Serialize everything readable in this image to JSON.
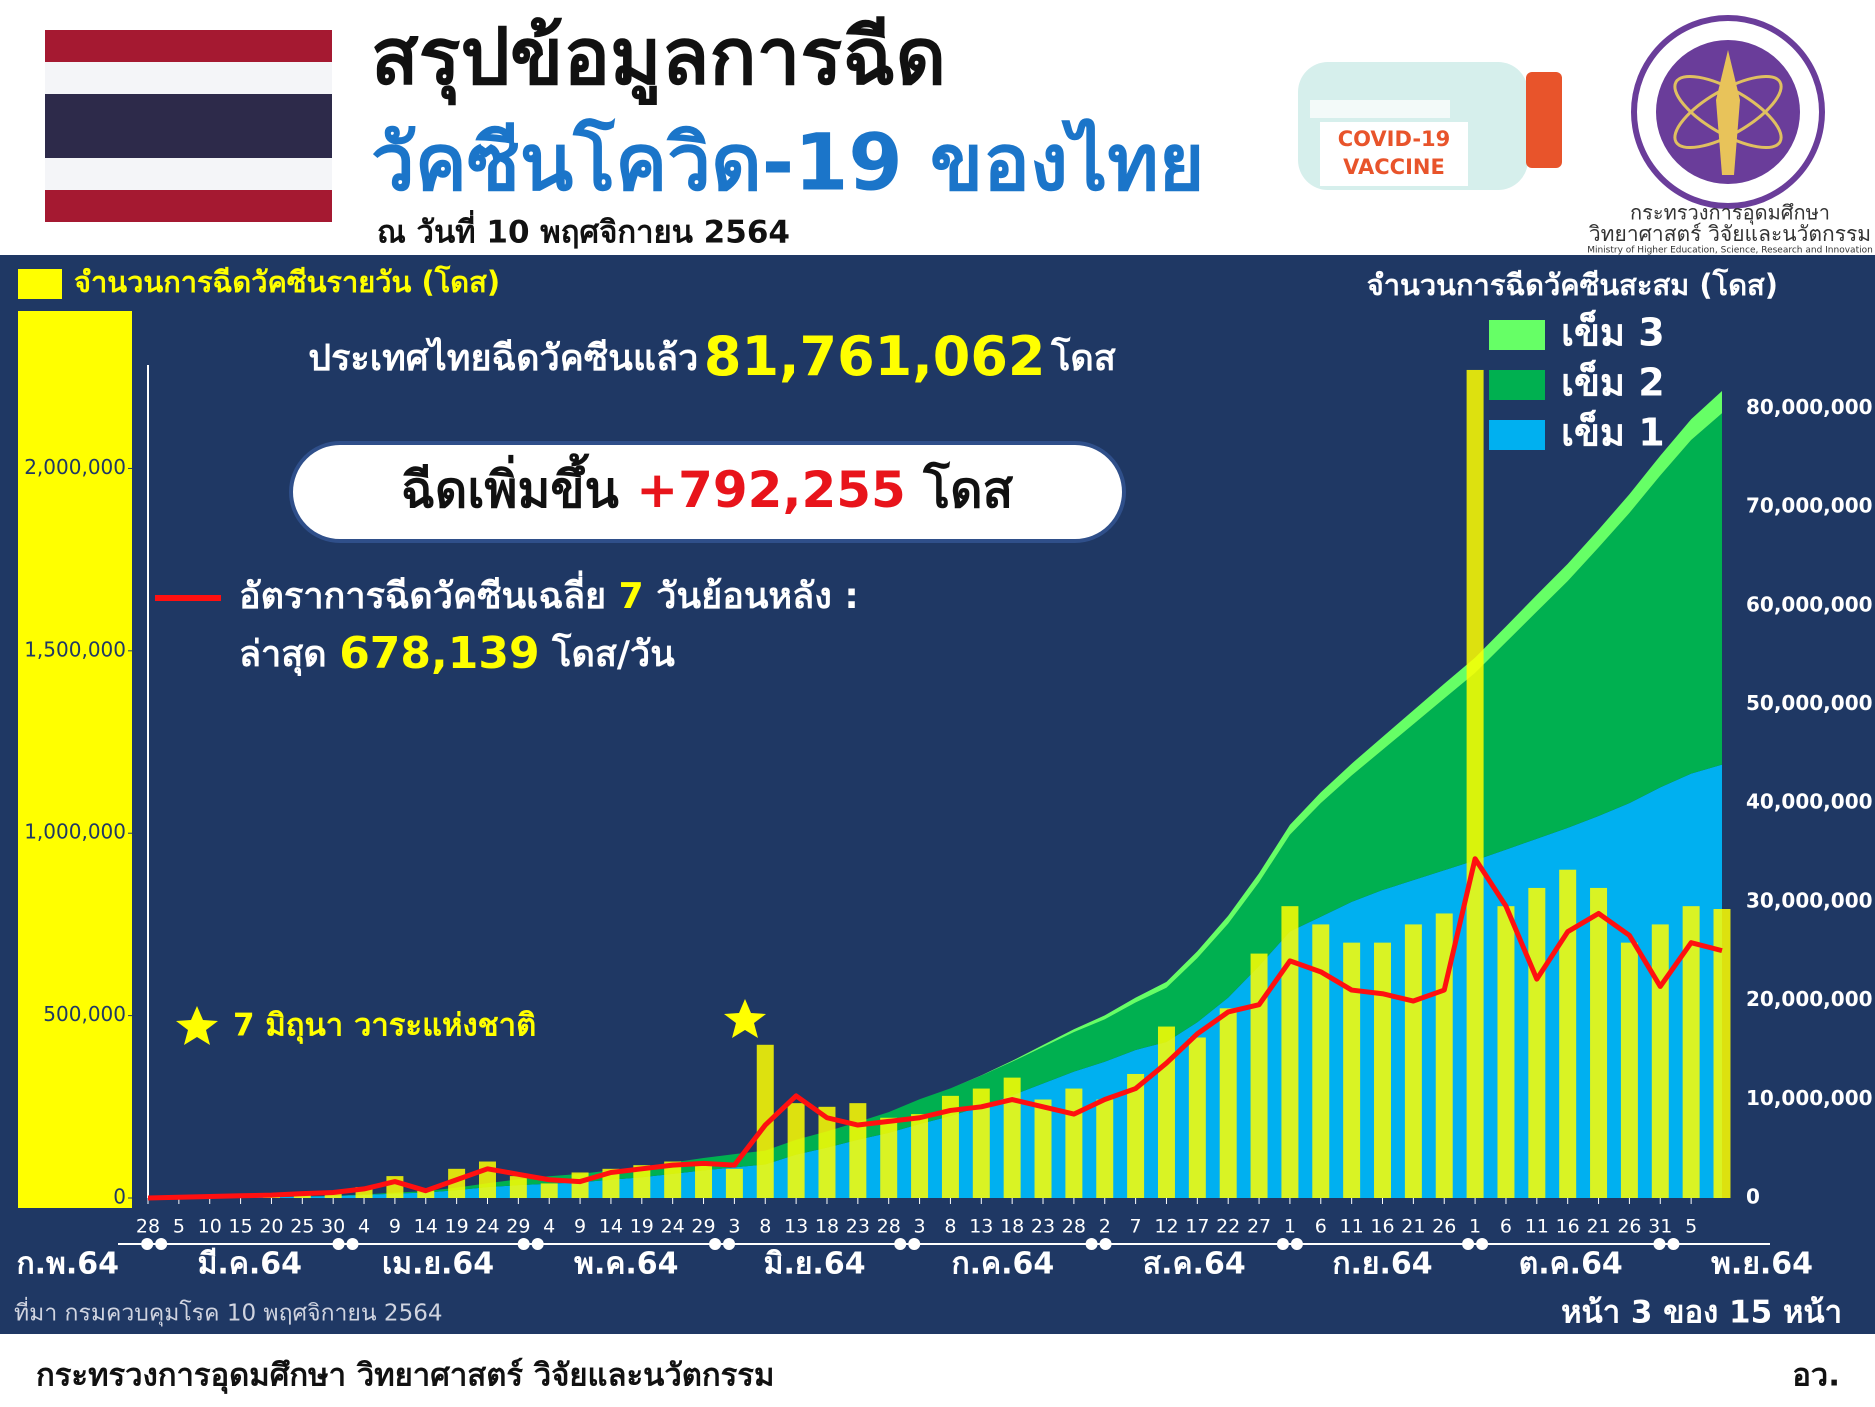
{
  "header": {
    "title_line1": "สรุปข้อมูลการฉีด",
    "title_line2": "วัคซีนโควิด-19 ของไทย",
    "date": "ณ วันที่ 10 พฤศจิกายน 2564",
    "vaccine_label": [
      "COVID-19",
      "VACCINE"
    ],
    "ministry_thai": [
      "กระทรวงการอุดมศึกษา",
      "วิทยาศาสตร์ วิจัยและนวัตกรรม"
    ],
    "ministry_en": "Ministry of Higher Education, Science, Research and Innovation"
  },
  "chart_data": {
    "type": "combo",
    "total": {
      "prefix": "ประเทศไทยฉีดวัคซีนแล้ว",
      "value": "81,761,062",
      "unit": "โดส"
    },
    "increase": {
      "prefix": "ฉีดเพิ่มขึ้น",
      "value": "+792,255",
      "unit": "โดส"
    },
    "average_note": {
      "prefix": "อัตราการฉีดวัคซีนเฉลี่ย",
      "days": "7",
      "suffix": "วันย้อนหลัง :",
      "latest_prefix": "ล่าสุด",
      "latest_value": "678,139",
      "latest_unit": "โดส/วัน"
    },
    "annotation": "7 มิถุนา วาระแห่งชาติ",
    "right_axis_title": "จำนวนการฉีดวัคซีนสะสม (โดส)",
    "x": [
      0,
      5,
      10,
      15,
      20,
      25,
      30,
      35,
      40,
      45,
      50,
      55,
      60,
      65,
      70,
      75,
      80,
      85,
      90,
      95,
      100,
      105,
      110,
      115,
      120,
      125,
      130,
      135,
      140,
      145,
      150,
      155,
      160,
      165,
      170,
      175,
      180,
      185,
      190,
      195,
      200,
      205,
      210,
      215,
      220,
      225,
      230,
      235,
      240,
      245,
      250,
      255
    ],
    "xlim": [
      0,
      255
    ],
    "xticks": [
      {
        "value": 0,
        "label": "28"
      },
      5,
      10,
      15,
      20,
      25,
      30,
      {
        "value": 35,
        "label": "4"
      },
      {
        "value": 40,
        "label": "9"
      },
      {
        "value": 45,
        "label": "14"
      },
      {
        "value": 50,
        "label": "19"
      },
      {
        "value": 55,
        "label": "24"
      },
      {
        "value": 60,
        "label": "29"
      },
      {
        "value": 65,
        "label": "4"
      },
      {
        "value": 70,
        "label": "9"
      },
      {
        "value": 75,
        "label": "14"
      },
      {
        "value": 80,
        "label": "19"
      },
      {
        "value": 85,
        "label": "24"
      },
      {
        "value": 90,
        "label": "29"
      },
      {
        "value": 95,
        "label": "3"
      },
      {
        "value": 100,
        "label": "8"
      },
      {
        "value": 105,
        "label": "13"
      },
      {
        "value": 110,
        "label": "18"
      },
      {
        "value": 115,
        "label": "23"
      },
      {
        "value": 120,
        "label": "28"
      },
      {
        "value": 125,
        "label": "3"
      },
      {
        "value": 130,
        "label": "8"
      },
      {
        "value": 135,
        "label": "13"
      },
      {
        "value": 140,
        "label": "18"
      },
      {
        "value": 145,
        "label": "23"
      },
      {
        "value": 150,
        "label": "28"
      },
      {
        "value": 155,
        "label": "2"
      },
      {
        "value": 160,
        "label": "7"
      },
      {
        "value": 165,
        "label": "12"
      },
      {
        "value": 170,
        "label": "17"
      },
      {
        "value": 175,
        "label": "22"
      },
      {
        "value": 180,
        "label": "27"
      },
      {
        "value": 185,
        "label": "1"
      },
      {
        "value": 190,
        "label": "6"
      },
      {
        "value": 195,
        "label": "11"
      },
      {
        "value": 200,
        "label": "16"
      },
      {
        "value": 205,
        "label": "21"
      },
      {
        "value": 210,
        "label": "26"
      },
      {
        "value": 215,
        "label": "1"
      },
      {
        "value": 220,
        "label": "6"
      },
      {
        "value": 225,
        "label": "11"
      },
      {
        "value": 230,
        "label": "16"
      },
      {
        "value": 235,
        "label": "21"
      },
      {
        "value": 240,
        "label": "26"
      },
      {
        "value": 245,
        "label": "31"
      },
      {
        "value": 250,
        "label": "5"
      }
    ],
    "months": [
      {
        "value": -27,
        "label": "ก.พ.64"
      },
      {
        "value": 1,
        "label": "มี.ค.64"
      },
      {
        "value": 32,
        "label": "เม.ย.64"
      },
      {
        "value": 62,
        "label": "พ.ค.64"
      },
      {
        "value": 93,
        "label": "มิ.ย.64"
      },
      {
        "value": 123,
        "label": "ก.ค.64"
      },
      {
        "value": 154,
        "label": "ส.ค.64"
      },
      {
        "value": 185,
        "label": "ก.ย.64"
      },
      {
        "value": 215,
        "label": "ต.ค.64"
      },
      {
        "value": 246,
        "label": "พ.ย.64"
      }
    ],
    "ylim": [
      0,
      2300000
    ],
    "yticks": [
      0,
      {
        "value": 500000,
        "label": "500,000"
      },
      {
        "value": 1000000,
        "label": "1,000,000"
      },
      {
        "value": 1500000,
        "label": "1,500,000"
      },
      {
        "value": 2000000,
        "label": "2,000,000"
      }
    ],
    "y2lim": [
      0,
      85000000
    ],
    "y2ticks": [
      0,
      {
        "value": 10000000,
        "label": "10,000,000"
      },
      {
        "value": 20000000,
        "label": "20,000,000"
      },
      {
        "value": 30000000,
        "label": "30,000,000"
      },
      {
        "value": 40000000,
        "label": "40,000,000"
      },
      {
        "value": 50000000,
        "label": "50,000,000"
      },
      {
        "value": 60000000,
        "label": "60,000,000"
      },
      {
        "value": 70000000,
        "label": "70,000,000"
      },
      {
        "value": 80000000,
        "label": "80,000,000"
      }
    ],
    "daily": {
      "name": "จำนวนการฉีดวัคซีนรายวัน (โดส)",
      "color": "#ffff00",
      "values": [
        0,
        3000,
        5000,
        8000,
        10000,
        15000,
        20000,
        30000,
        60000,
        20000,
        80000,
        100000,
        60000,
        40000,
        70000,
        80000,
        90000,
        100000,
        90000,
        80000,
        420000,
        260000,
        250000,
        260000,
        220000,
        230000,
        280000,
        300000,
        330000,
        270000,
        300000,
        270000,
        340000,
        470000,
        440000,
        520000,
        670000,
        800000,
        750000,
        700000,
        700000,
        750000,
        780000,
        2270000,
        800000,
        850000,
        900000,
        850000,
        700000,
        750000,
        800000,
        792255
      ]
    },
    "average": {
      "color": "#ff1010",
      "values": [
        0,
        2000,
        4000,
        6000,
        8000,
        12000,
        15000,
        25000,
        45000,
        20000,
        50000,
        80000,
        65000,
        50000,
        45000,
        70000,
        80000,
        90000,
        95000,
        90000,
        200000,
        280000,
        220000,
        200000,
        210000,
        220000,
        240000,
        250000,
        270000,
        250000,
        230000,
        270000,
        300000,
        370000,
        450000,
        510000,
        530000,
        650000,
        620000,
        570000,
        560000,
        540000,
        570000,
        930000,
        800000,
        600000,
        730000,
        780000,
        720000,
        580000,
        700000,
        678139
      ]
    },
    "series": [
      {
        "name": "เข็ม 1",
        "color": "#00b0f0",
        "axis": "y2",
        "values": [
          0,
          20000,
          50000,
          70000,
          100000,
          140000,
          200000,
          300000,
          450000,
          550000,
          800000,
          1100000,
          1300000,
          1450000,
          1600000,
          1850000,
          2100000,
          2450000,
          2800000,
          3100000,
          3400000,
          4400000,
          5100000,
          5900000,
          6600000,
          7500000,
          8300000,
          9300000,
          10400000,
          11600000,
          12800000,
          13800000,
          15000000,
          15800000,
          17800000,
          20300000,
          23500000,
          27000000,
          28500000,
          30000000,
          31200000,
          32200000,
          33200000,
          34200000,
          35300000,
          36400000,
          37500000,
          38700000,
          40000000,
          41600000,
          43000000,
          43900000
        ]
      },
      {
        "name": "เข็ม 2",
        "color": "#00b050",
        "axis": "y2",
        "values": [
          0,
          0,
          0,
          0,
          0,
          10000,
          30000,
          60000,
          100000,
          150000,
          250000,
          400000,
          600000,
          750000,
          850000,
          950000,
          1050000,
          1150000,
          1250000,
          1350000,
          1400000,
          1500000,
          1650000,
          1800000,
          2100000,
          2500000,
          2800000,
          3100000,
          3400000,
          3700000,
          4000000,
          4300000,
          4800000,
          5500000,
          6500000,
          7500000,
          8500000,
          9800000,
          11500000,
          12800000,
          14200000,
          15800000,
          17400000,
          19000000,
          21000000,
          23000000,
          25000000,
          27200000,
          29400000,
          31600000,
          33800000,
          35600000
        ]
      },
      {
        "name": "เข็ม 3",
        "color": "#66ff66",
        "axis": "y2",
        "values": [
          0,
          0,
          0,
          0,
          0,
          0,
          0,
          0,
          0,
          0,
          0,
          0,
          0,
          0,
          0,
          0,
          0,
          0,
          0,
          0,
          0,
          0,
          0,
          0,
          0,
          0,
          0,
          20000,
          100000,
          200000,
          300000,
          400000,
          500000,
          600000,
          700000,
          800000,
          900000,
          1000000,
          1100000,
          1200000,
          1300000,
          1400000,
          1500000,
          1550000,
          1600000,
          1700000,
          1750000,
          1800000,
          1900000,
          2000000,
          2100000,
          2260000
        ]
      }
    ]
  },
  "footer": {
    "source": "ที่มา กรมควบคุมโรค 10 พฤศจิกายน 2564",
    "page": "หน้า 3 ของ 15 หน้า",
    "ministry": "กระทรวงการอุดมศึกษา วิทยาศาสตร์ วิจัยและนวัตกรรม",
    "abbr": "อว."
  }
}
